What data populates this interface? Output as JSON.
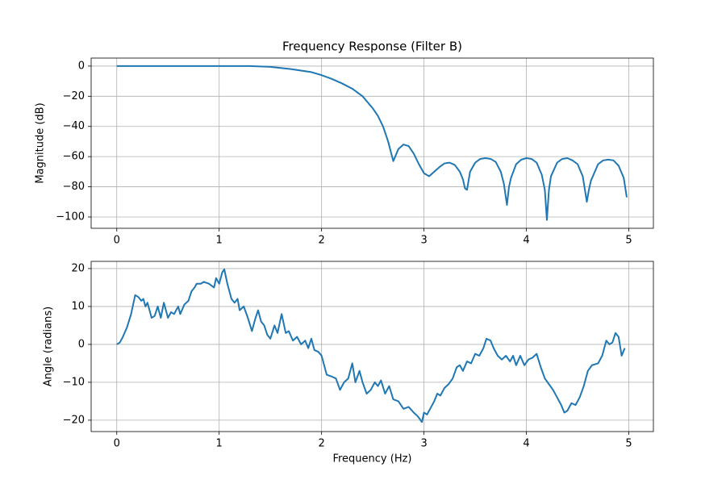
{
  "chart_data": [
    {
      "type": "line",
      "title": "Frequency Response (Filter B)",
      "ylabel": "Magnitude (dB)",
      "color": "#1f77b4",
      "grid": true,
      "xlim": [
        -0.25,
        5.24
      ],
      "ylim": [
        -107.5,
        5.3
      ],
      "xticks": [
        0,
        1,
        2,
        3,
        4,
        5
      ],
      "yticks": [
        {
          "value": -100,
          "label": "−100"
        },
        {
          "value": -80,
          "label": "−80"
        },
        {
          "value": -60,
          "label": "−60"
        },
        {
          "value": -40,
          "label": "−40"
        },
        {
          "value": -20,
          "label": "−20"
        },
        0
      ],
      "x": [
        0,
        0.5,
        1.0,
        1.3,
        1.5,
        1.7,
        1.9,
        2.0,
        2.1,
        2.2,
        2.3,
        2.4,
        2.5,
        2.55,
        2.6,
        2.65,
        2.7,
        2.75,
        2.8,
        2.85,
        2.9,
        2.95,
        3.0,
        3.05,
        3.1,
        3.15,
        3.2,
        3.25,
        3.3,
        3.35,
        3.38,
        3.4,
        3.42,
        3.45,
        3.5,
        3.55,
        3.6,
        3.65,
        3.7,
        3.75,
        3.78,
        3.81,
        3.83,
        3.85,
        3.9,
        3.95,
        4.0,
        4.05,
        4.1,
        4.15,
        4.18,
        4.2,
        4.22,
        4.24,
        4.3,
        4.35,
        4.4,
        4.45,
        4.5,
        4.55,
        4.59,
        4.61,
        4.63,
        4.7,
        4.75,
        4.8,
        4.85,
        4.9,
        4.95,
        4.98
      ],
      "values": [
        0,
        0,
        0,
        0,
        -0.5,
        -2,
        -4,
        -6,
        -8.5,
        -11.5,
        -15,
        -20,
        -28,
        -33,
        -40,
        -50,
        -63,
        -55,
        -52,
        -53,
        -58,
        -65,
        -71,
        -73,
        -70,
        -67,
        -64.5,
        -64,
        -65.5,
        -70,
        -75,
        -81,
        -82,
        -70,
        -64,
        -61.5,
        -61,
        -61.5,
        -63.5,
        -70,
        -78,
        -92,
        -80,
        -74,
        -65,
        -62,
        -61,
        -61.5,
        -64,
        -72,
        -82,
        -102,
        -82,
        -73,
        -64,
        -61.5,
        -61,
        -62.5,
        -65,
        -73,
        -90,
        -82,
        -76,
        -65,
        -62.5,
        -62,
        -62.5,
        -66,
        -74,
        -87
      ]
    },
    {
      "type": "line",
      "ylabel": "Angle (radians)",
      "xlabel": "Frequency (Hz)",
      "color": "#1f77b4",
      "grid": true,
      "xlim": [
        -0.25,
        5.24
      ],
      "ylim": [
        -23,
        21.9
      ],
      "xticks": [
        0,
        1,
        2,
        3,
        4,
        5
      ],
      "yticks": [
        {
          "value": -20,
          "label": "−20"
        },
        {
          "value": -10,
          "label": "−10"
        },
        0,
        10,
        20
      ],
      "x": [
        0,
        0.03,
        0.06,
        0.1,
        0.14,
        0.18,
        0.21,
        0.24,
        0.26,
        0.28,
        0.3,
        0.34,
        0.37,
        0.4,
        0.43,
        0.46,
        0.5,
        0.53,
        0.56,
        0.6,
        0.62,
        0.66,
        0.7,
        0.73,
        0.76,
        0.78,
        0.82,
        0.85,
        0.9,
        0.95,
        0.97,
        1.0,
        1.03,
        1.05,
        1.08,
        1.12,
        1.15,
        1.18,
        1.2,
        1.24,
        1.28,
        1.32,
        1.35,
        1.38,
        1.41,
        1.44,
        1.47,
        1.5,
        1.54,
        1.57,
        1.61,
        1.65,
        1.68,
        1.72,
        1.76,
        1.8,
        1.84,
        1.87,
        1.9,
        1.93,
        1.97,
        2.0,
        2.05,
        2.1,
        2.14,
        2.18,
        2.22,
        2.26,
        2.3,
        2.33,
        2.37,
        2.4,
        2.44,
        2.48,
        2.52,
        2.55,
        2.58,
        2.62,
        2.66,
        2.7,
        2.75,
        2.8,
        2.85,
        2.9,
        2.94,
        2.98,
        3.0,
        3.03,
        3.06,
        3.1,
        3.13,
        3.16,
        3.2,
        3.24,
        3.28,
        3.32,
        3.35,
        3.38,
        3.42,
        3.46,
        3.5,
        3.54,
        3.58,
        3.61,
        3.65,
        3.68,
        3.72,
        3.76,
        3.8,
        3.84,
        3.87,
        3.9,
        3.94,
        3.98,
        4.02,
        4.06,
        4.1,
        4.14,
        4.18,
        4.22,
        4.26,
        4.3,
        4.34,
        4.37,
        4.4,
        4.44,
        4.48,
        4.52,
        4.56,
        4.6,
        4.64,
        4.7,
        4.74,
        4.78,
        4.81,
        4.84,
        4.87,
        4.9,
        4.93,
        4.96
      ],
      "values": [
        0,
        0.5,
        2,
        4.5,
        8,
        13,
        12.5,
        11.5,
        12,
        10,
        11,
        7,
        7.5,
        10,
        7,
        11,
        7,
        8.5,
        8,
        10,
        8,
        10.5,
        11.5,
        14,
        15,
        16,
        16,
        16.5,
        16,
        15,
        17.5,
        16,
        19,
        19.8,
        16,
        12,
        11,
        12,
        9,
        10,
        7,
        3.5,
        6.5,
        9,
        6,
        5,
        2.5,
        1.5,
        5,
        3,
        8,
        3,
        3.5,
        1,
        2,
        0,
        1,
        -1,
        1.5,
        -1.5,
        -2,
        -3,
        -8,
        -8.5,
        -9,
        -12,
        -10,
        -9,
        -5,
        -10,
        -7,
        -10,
        -13,
        -12,
        -10,
        -11,
        -9.5,
        -13,
        -11,
        -14.5,
        -15,
        -17,
        -16.5,
        -18,
        -19,
        -20.5,
        -18,
        -18.5,
        -17,
        -15,
        -13,
        -13.5,
        -11.5,
        -10.5,
        -9,
        -6,
        -5.5,
        -7,
        -4.5,
        -5,
        -2.5,
        -3,
        -1,
        1.5,
        1,
        -1,
        -3,
        -4,
        -3,
        -4.5,
        -3,
        -5.5,
        -3,
        -5.5,
        -4,
        -3.5,
        -2.5,
        -6,
        -9,
        -10.5,
        -12,
        -14,
        -16,
        -18,
        -17.5,
        -15.5,
        -16,
        -14,
        -11,
        -7,
        -5.5,
        -5,
        -3,
        1,
        0,
        0.5,
        3,
        2,
        -3,
        -1
      ]
    }
  ]
}
